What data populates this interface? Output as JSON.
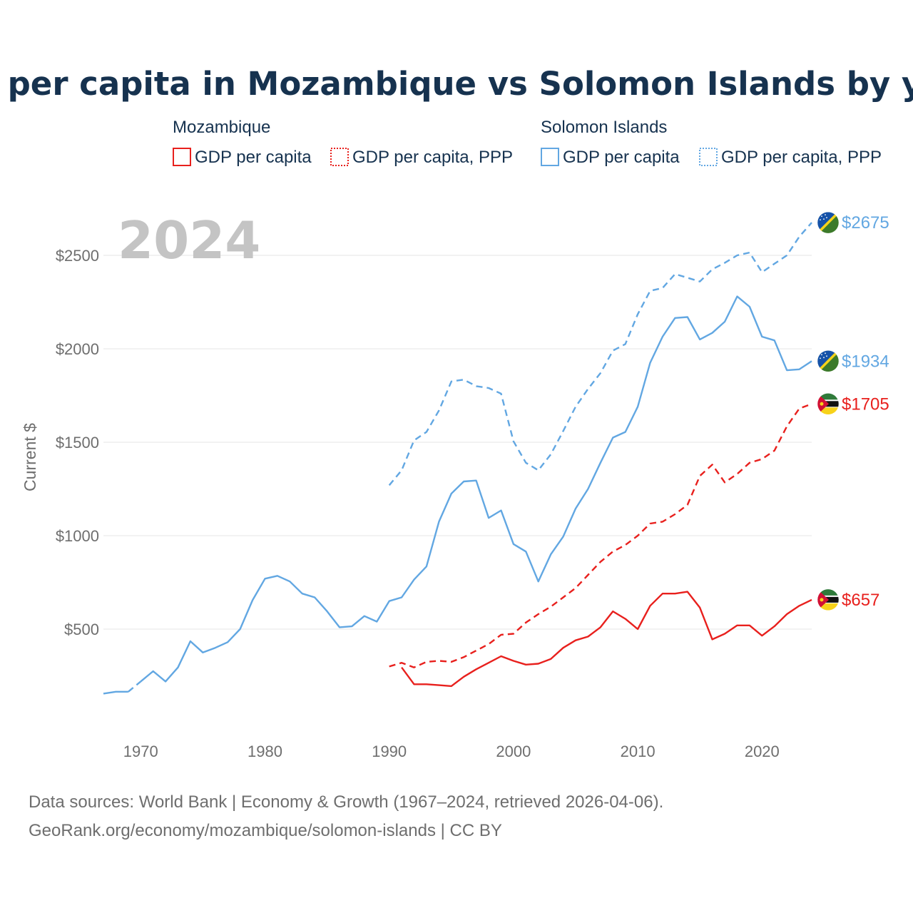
{
  "colors": {
    "mozambique": "#e8201d",
    "solomon": "#62a7e2",
    "title": "#16324f"
  },
  "icons": {
    "mozambique": "mozambique-flag-icon",
    "solomon": "solomon-islands-flag-icon"
  },
  "chart_data": {
    "type": "line",
    "title": "GDP per capita in Mozambique vs Solomon Islands by year",
    "xlabel": "",
    "ylabel": "Current $",
    "year_label": "2024",
    "xlim": [
      1967,
      2024
    ],
    "ylim": [
      0,
      2750
    ],
    "x_ticks": [
      1970,
      1980,
      1990,
      2000,
      2010,
      2020
    ],
    "x_tick_labels": [
      "1970",
      "1980",
      "1990",
      "2000",
      "2010",
      "2020"
    ],
    "y_ticks": [
      500,
      1000,
      1500,
      2000,
      2500
    ],
    "y_tick_labels": [
      "$500",
      "$1000",
      "$1500",
      "$2000",
      "$2500"
    ],
    "legend": {
      "groups": [
        {
          "country": "Mozambique",
          "items": [
            "GDP per capita",
            "GDP per capita, PPP"
          ]
        },
        {
          "country": "Solomon Islands",
          "items": [
            "GDP per capita",
            "GDP per capita, PPP"
          ]
        }
      ]
    },
    "series": [
      {
        "name": "Solomon Islands GDP per capita PPP",
        "country": "Solomon Islands",
        "style": "dashed",
        "end_label": "$2675",
        "x": [
          1990,
          1991,
          1992,
          1993,
          1994,
          1995,
          1996,
          1997,
          1998,
          1999,
          2000,
          2001,
          2002,
          2003,
          2004,
          2005,
          2006,
          2007,
          2008,
          2009,
          2010,
          2011,
          2012,
          2013,
          2014,
          2015,
          2016,
          2017,
          2018,
          2019,
          2020,
          2021,
          2022,
          2023,
          2024
        ],
        "y": [
          1270,
          1350,
          1510,
          1555,
          1670,
          1825,
          1835,
          1800,
          1790,
          1760,
          1505,
          1390,
          1350,
          1435,
          1560,
          1690,
          1785,
          1870,
          1990,
          2025,
          2185,
          2310,
          2325,
          2400,
          2380,
          2360,
          2425,
          2460,
          2500,
          2515,
          2410,
          2455,
          2500,
          2600,
          2675
        ]
      },
      {
        "name": "Solomon Islands GDP per capita",
        "country": "Solomon Islands",
        "style": "solid",
        "end_label": "$1934",
        "x": [
          1967,
          1968,
          1969,
          1970,
          1971,
          1972,
          1973,
          1974,
          1975,
          1976,
          1977,
          1978,
          1979,
          1980,
          1981,
          1982,
          1983,
          1984,
          1985,
          1986,
          1987,
          1988,
          1989,
          1990,
          1991,
          1992,
          1993,
          1994,
          1995,
          1996,
          1997,
          1998,
          1999,
          2000,
          2001,
          2002,
          2003,
          2004,
          2005,
          2006,
          2007,
          2008,
          2009,
          2010,
          2011,
          2012,
          2013,
          2014,
          2015,
          2016,
          2017,
          2018,
          2019,
          2020,
          2021,
          2022,
          2023,
          2024
        ],
        "y": [
          155,
          165,
          165,
          220,
          275,
          220,
          295,
          435,
          375,
          400,
          430,
          500,
          655,
          770,
          785,
          755,
          690,
          670,
          595,
          510,
          515,
          570,
          540,
          650,
          670,
          765,
          835,
          1075,
          1225,
          1290,
          1295,
          1095,
          1135,
          955,
          915,
          755,
          900,
          995,
          1145,
          1250,
          1390,
          1525,
          1555,
          1690,
          1925,
          2065,
          2165,
          2170,
          2050,
          2085,
          2145,
          2280,
          2225,
          2065,
          2045,
          1885,
          1890,
          1934
        ],
        "dashed_segments": [
          [
            1969,
            1970
          ]
        ]
      },
      {
        "name": "Mozambique GDP per capita PPP",
        "country": "Mozambique",
        "style": "dashed",
        "end_label": "$1705",
        "x": [
          1990,
          1991,
          1992,
          1993,
          1994,
          1995,
          1996,
          1997,
          1998,
          1999,
          2000,
          2001,
          2002,
          2003,
          2004,
          2005,
          2006,
          2007,
          2008,
          2009,
          2010,
          2011,
          2012,
          2013,
          2014,
          2015,
          2016,
          2017,
          2018,
          2019,
          2020,
          2021,
          2022,
          2023,
          2024
        ],
        "y": [
          300,
          320,
          295,
          325,
          330,
          325,
          350,
          385,
          420,
          470,
          475,
          535,
          580,
          620,
          670,
          720,
          790,
          860,
          915,
          950,
          1000,
          1065,
          1075,
          1115,
          1165,
          1320,
          1380,
          1285,
          1330,
          1390,
          1410,
          1455,
          1585,
          1680,
          1705
        ]
      },
      {
        "name": "Mozambique GDP per capita",
        "country": "Mozambique",
        "style": "solid",
        "end_label": "$657",
        "x": [
          1991,
          1992,
          1993,
          1994,
          1995,
          1996,
          1997,
          1998,
          1999,
          2000,
          2001,
          2002,
          2003,
          2004,
          2005,
          2006,
          2007,
          2008,
          2009,
          2010,
          2011,
          2012,
          2013,
          2014,
          2015,
          2016,
          2017,
          2018,
          2019,
          2020,
          2021,
          2022,
          2023,
          2024
        ],
        "y": [
          295,
          205,
          205,
          200,
          195,
          245,
          285,
          320,
          355,
          330,
          310,
          315,
          340,
          400,
          440,
          460,
          510,
          595,
          555,
          500,
          625,
          690,
          690,
          700,
          615,
          445,
          475,
          520,
          520,
          465,
          515,
          580,
          625,
          657
        ]
      }
    ]
  },
  "source": {
    "line1": "Data sources: World Bank | Economy & Growth (1967–2024, retrieved 2026-04-06).",
    "line2": "GeoRank.org/economy/mozambique/solomon-islands | CC BY"
  }
}
